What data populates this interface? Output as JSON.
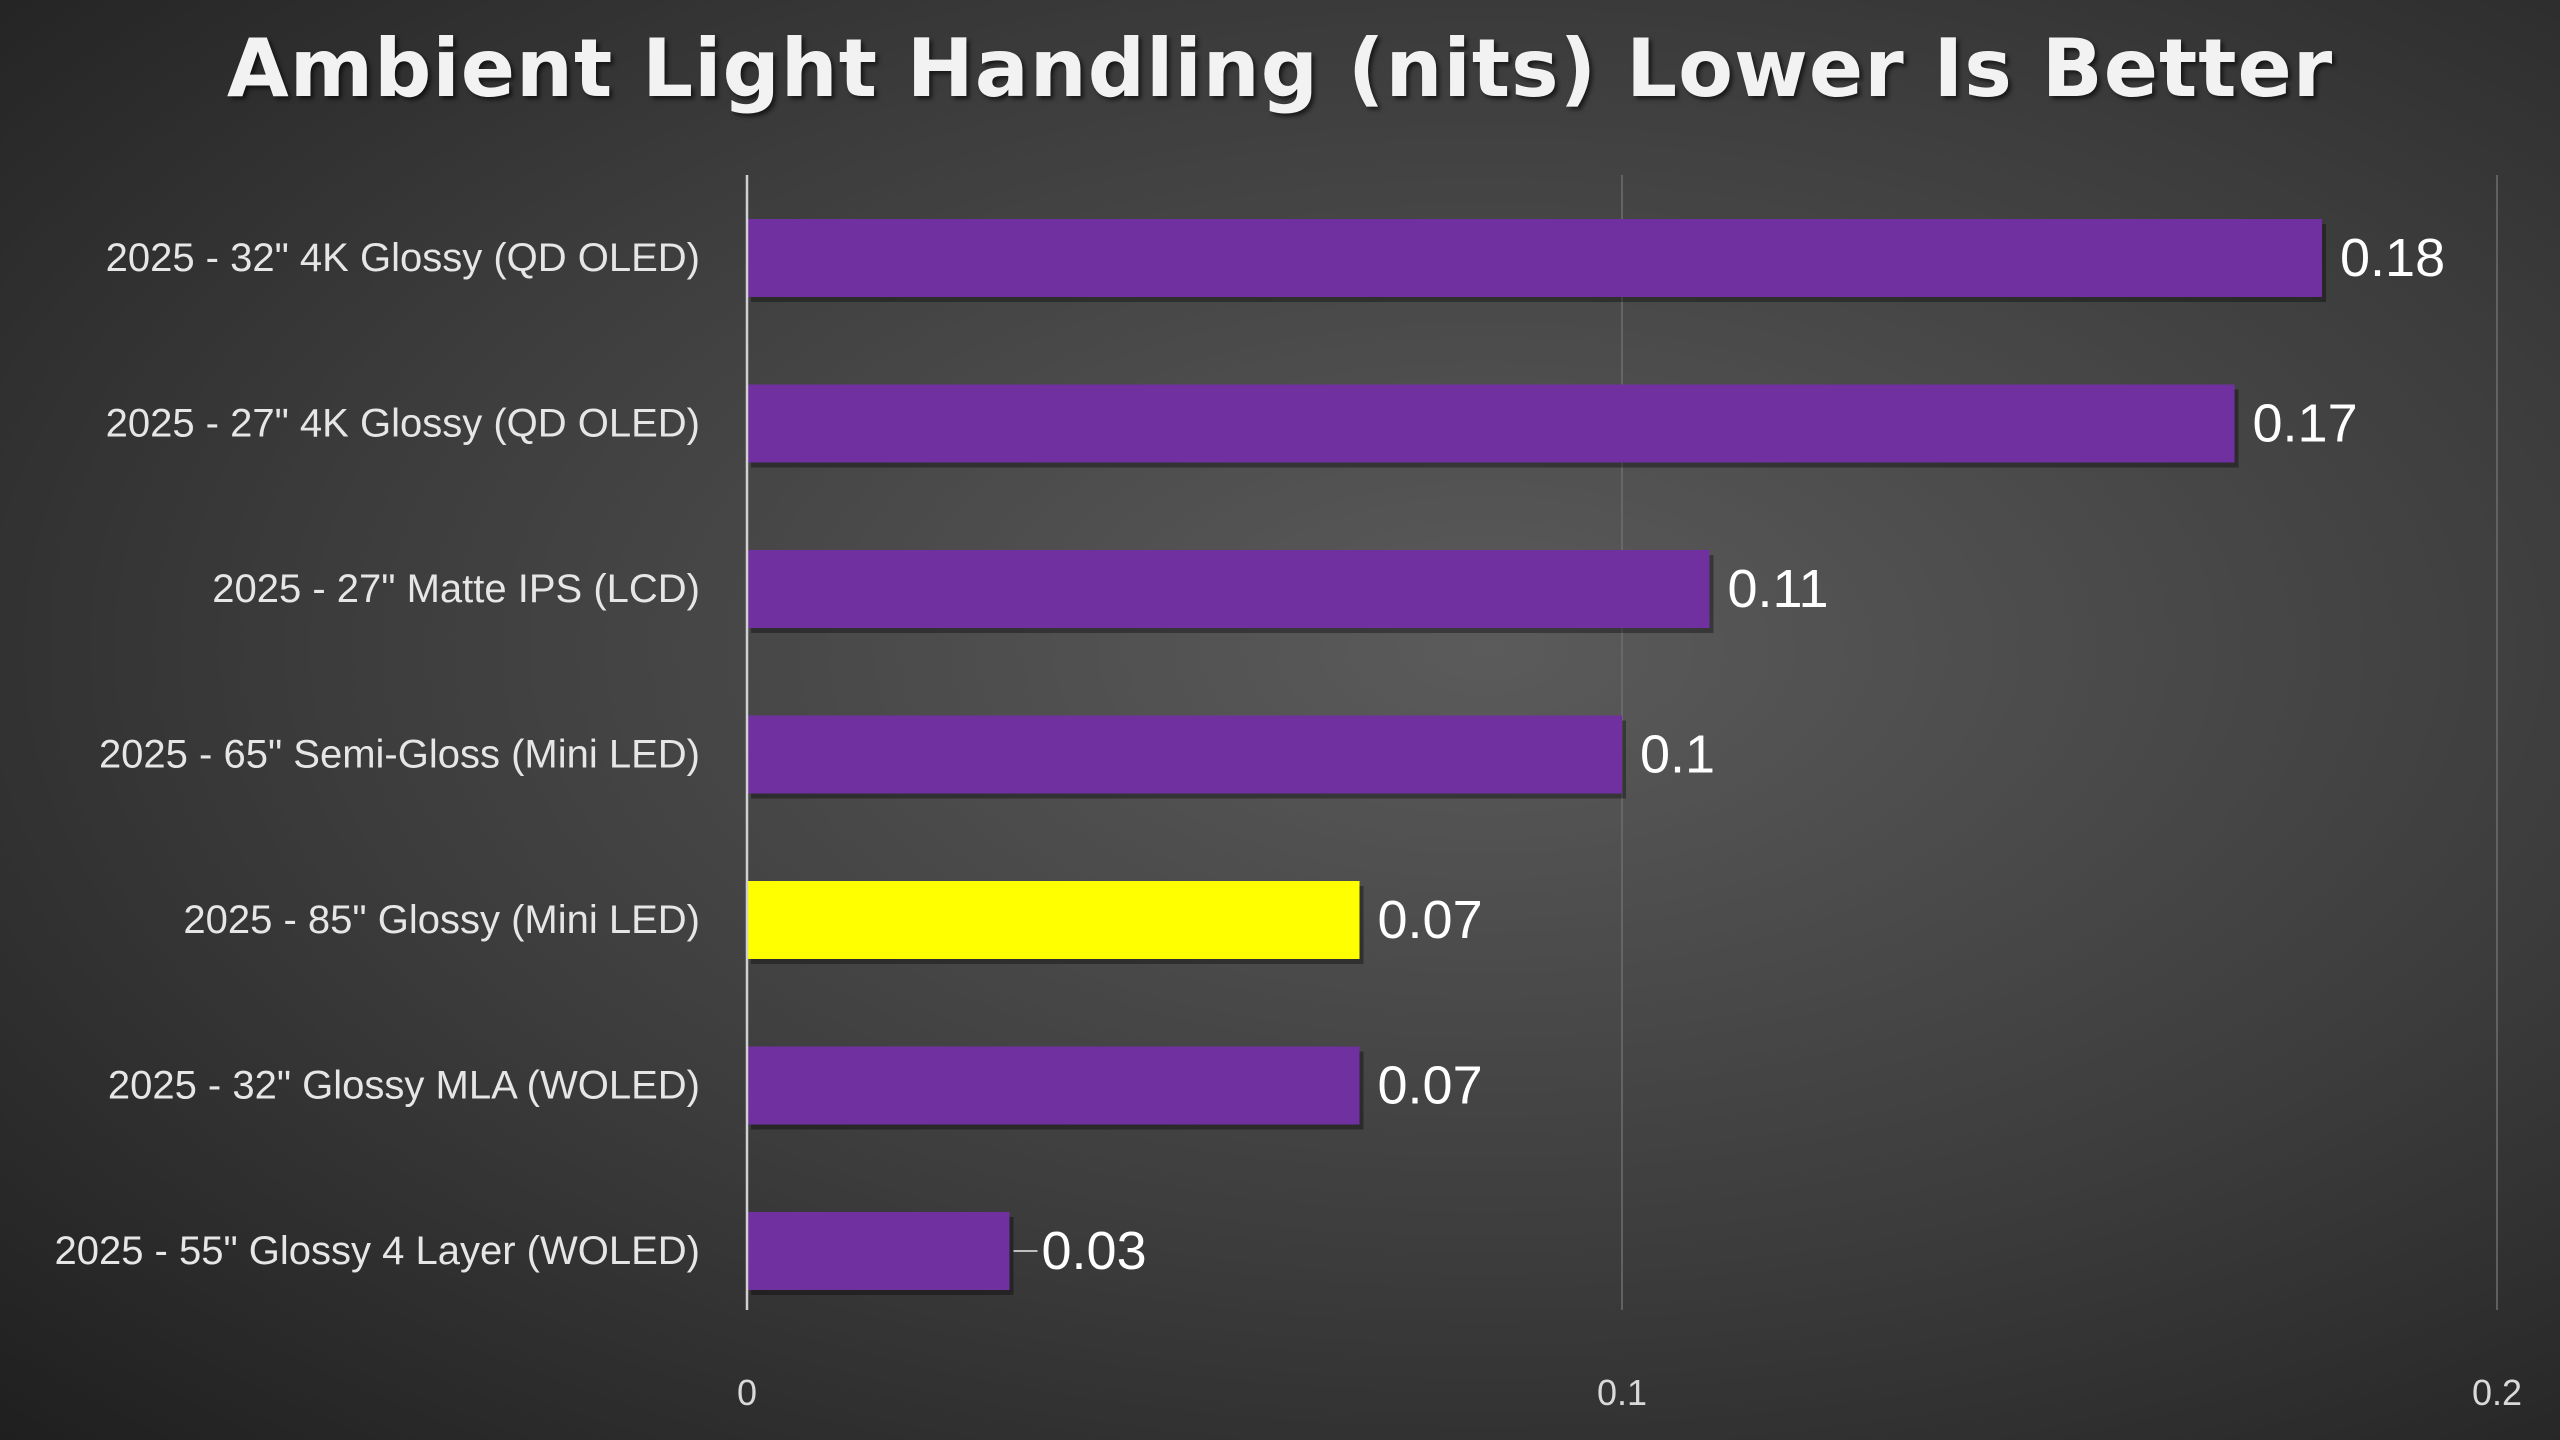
{
  "chart_data": {
    "type": "bar",
    "orientation": "horizontal",
    "title": "Ambient Light Handling (nits) Lower Is Better",
    "xlabel": "",
    "ylabel": "",
    "xlim": [
      0,
      0.2
    ],
    "x_ticks": [
      "0",
      "0.1",
      "0.2"
    ],
    "grid": true,
    "categories": [
      "2025 - 32\" 4K Glossy (QD OLED)",
      "2025 - 27\" 4K Glossy (QD OLED)",
      "2025 - 27\" Matte IPS (LCD)",
      "2025 - 65\" Semi-Gloss (Mini LED)",
      "2025 - 85\" Glossy (Mini LED)",
      "2025 - 32\" Glossy MLA (WOLED)",
      "2025 - 55\" Glossy 4 Layer (WOLED)"
    ],
    "values": [
      0.18,
      0.17,
      0.11,
      0.1,
      0.07,
      0.07,
      0.03
    ],
    "value_labels": [
      "0.18",
      "0.17",
      "0.11",
      "0.1",
      "0.07",
      "0.07",
      "0.03"
    ],
    "bar_colors": [
      "#7030a0",
      "#7030a0",
      "#7030a0",
      "#7030a0",
      "#ffff00",
      "#7030a0",
      "#7030a0"
    ],
    "highlighted_category": "2025 - 85\" Glossy (Mini LED)"
  }
}
